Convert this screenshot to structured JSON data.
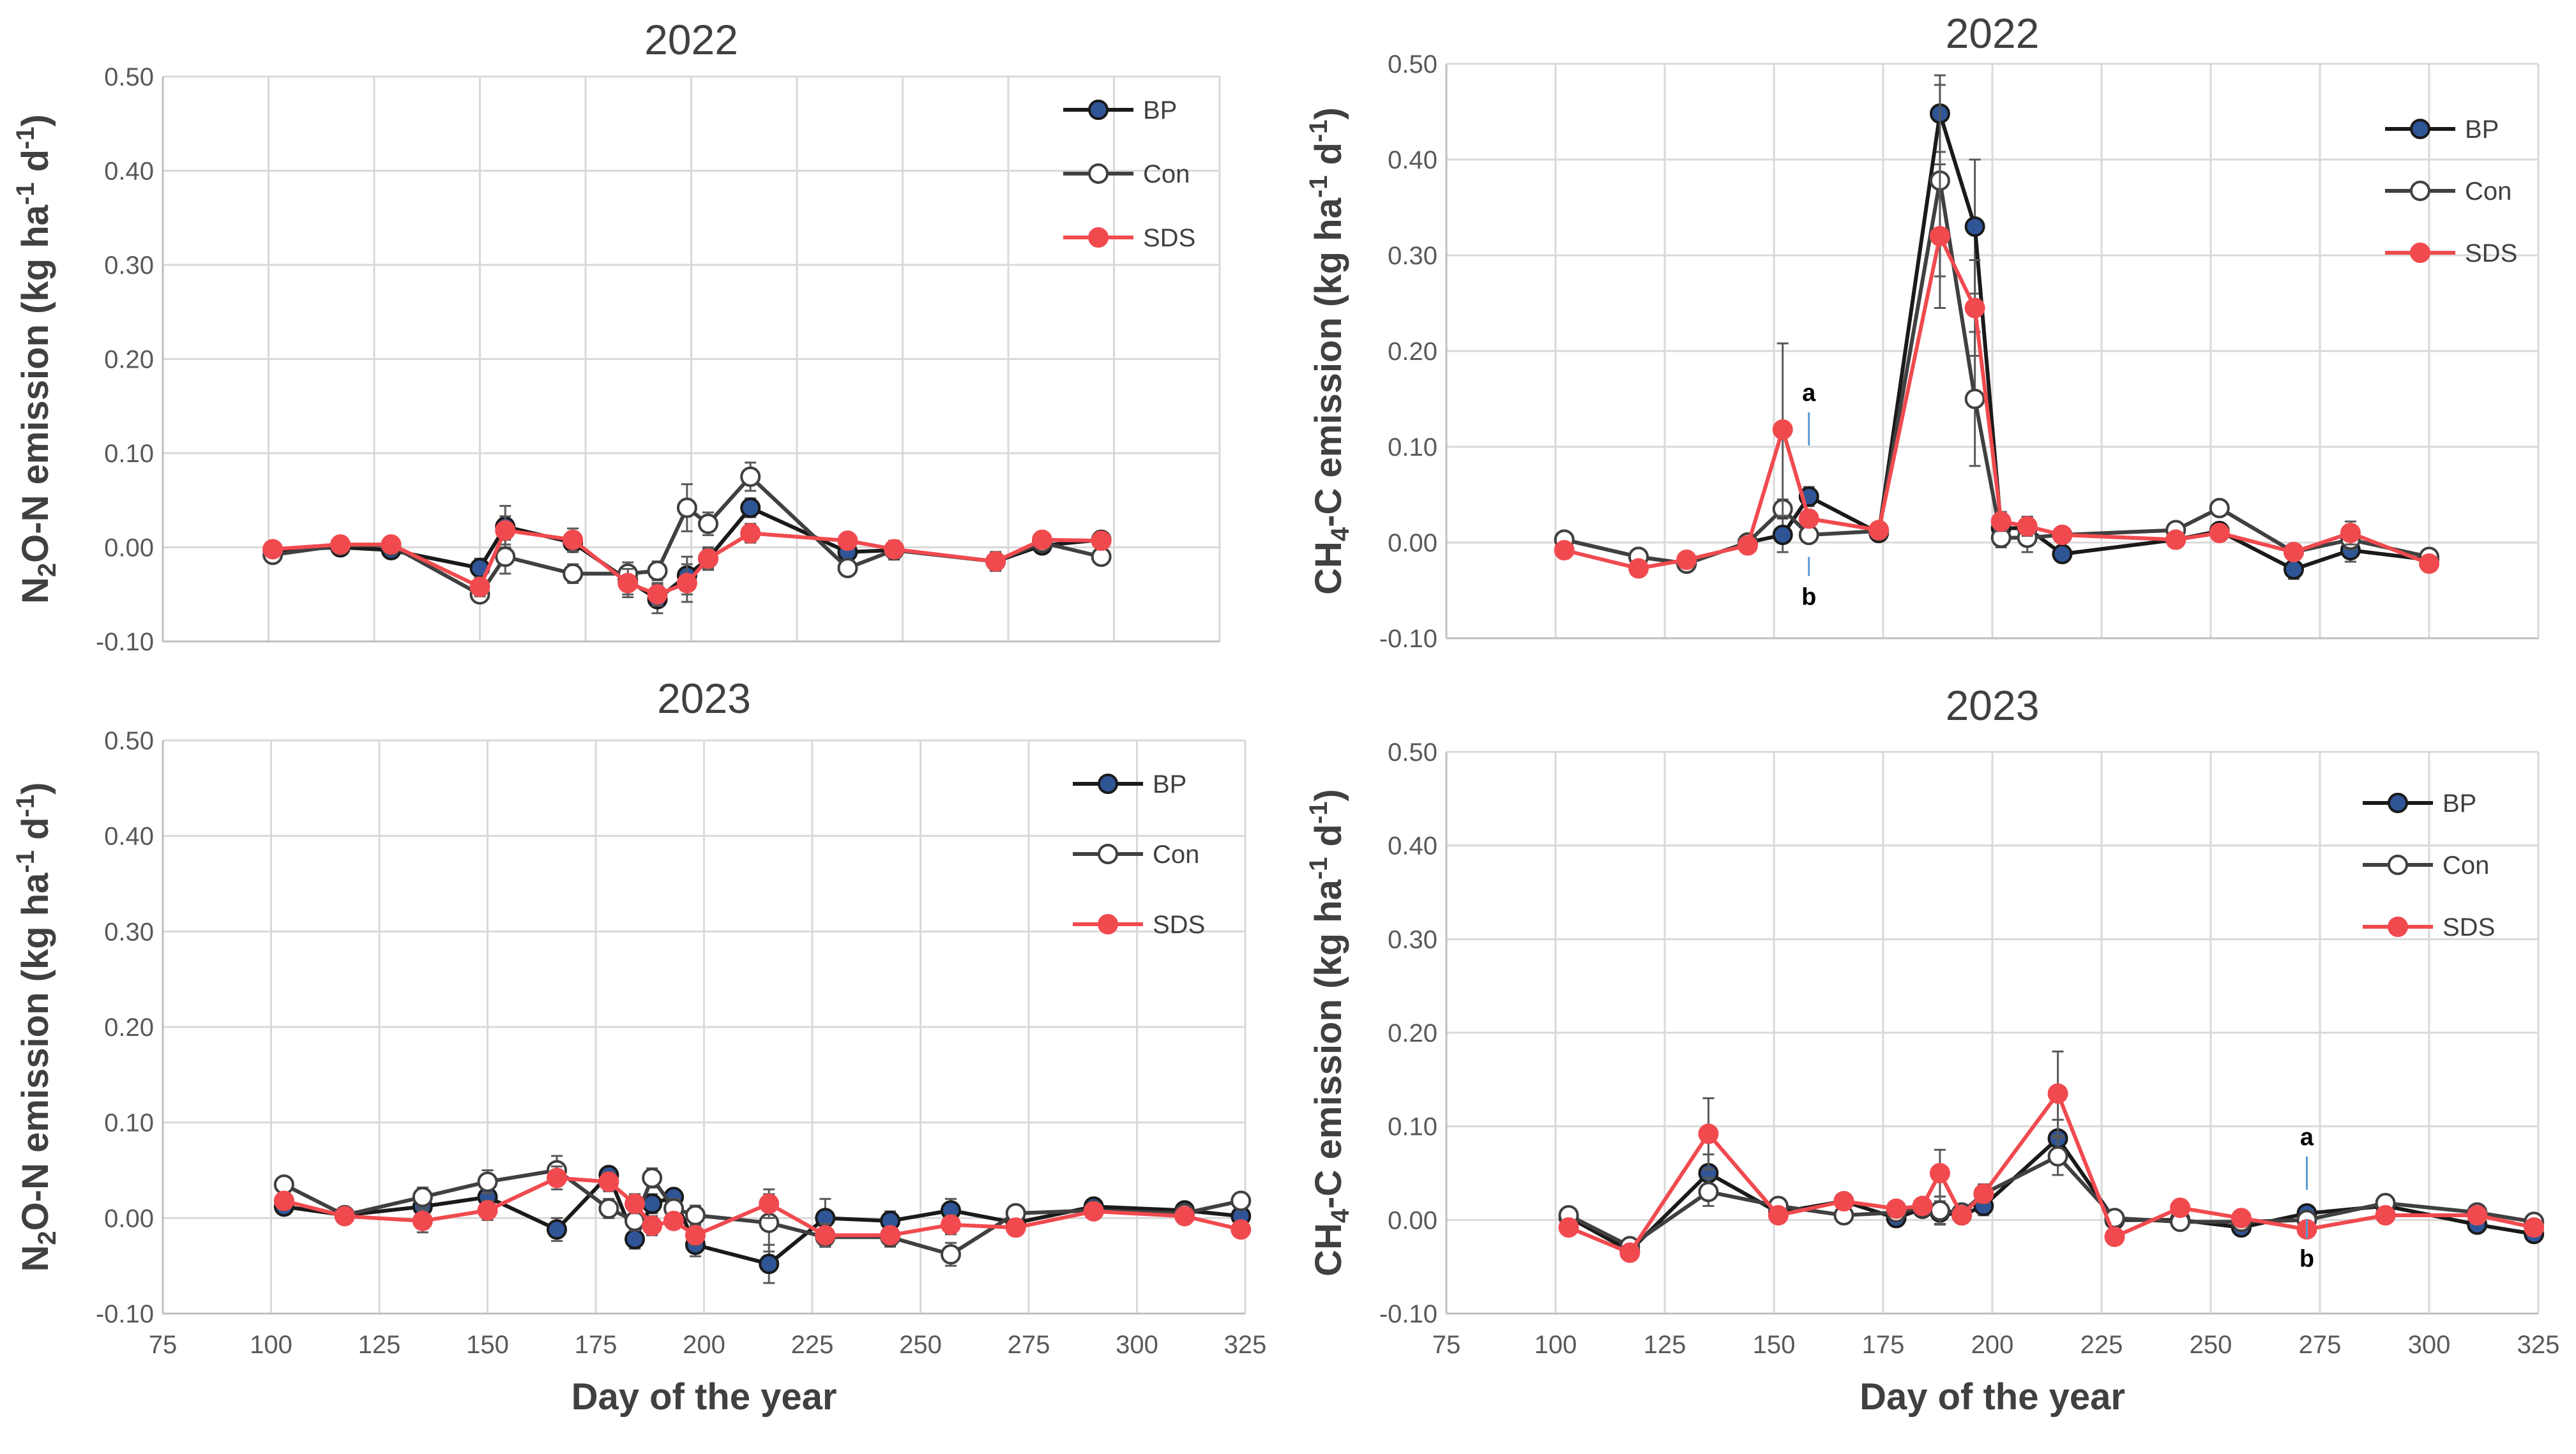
{
  "chart_data": [
    {
      "type": "line",
      "title": "2022",
      "ylabel": {
        "base": "N",
        "sub": "2",
        "rest": "O-N  emission (kg ha",
        "sup1": "-1",
        "mid": " d",
        "sup2": "-1",
        "end": ")"
      },
      "xlabel": "",
      "xlim": [
        75,
        325
      ],
      "ylim": [
        -0.1,
        0.5
      ],
      "yticks": [
        -0.1,
        0,
        0.1,
        0.2,
        0.3,
        0.4,
        0.5
      ],
      "ytick_labels": [
        "-0.10",
        "0.00",
        "0.10",
        "0.20",
        "0.30",
        "0.40",
        "0.50"
      ],
      "xticks": [],
      "legend": [
        "BP",
        "Con",
        "SDS"
      ],
      "legend_position": "top-right",
      "series": [
        {
          "name": "BP",
          "x": [
            101,
            117,
            129,
            150,
            156,
            172,
            185,
            192,
            199,
            204,
            214,
            237,
            248,
            272,
            283,
            297
          ],
          "y": [
            -0.003,
            0.0,
            -0.003,
            -0.022,
            0.022,
            0.005,
            -0.035,
            -0.055,
            -0.03,
            -0.012,
            0.042,
            -0.005,
            -0.003,
            -0.015,
            0.002,
            0.008
          ],
          "err": [
            0.005,
            0.005,
            0.005,
            0.01,
            0.022,
            0.01,
            0.015,
            0.015,
            0.02,
            0.012,
            0.01,
            0.01,
            0.01,
            0.01,
            0.005,
            0.005
          ]
        },
        {
          "name": "Con",
          "x": [
            101,
            117,
            129,
            150,
            156,
            172,
            185,
            192,
            199,
            204,
            214,
            237,
            248,
            272,
            283,
            297
          ],
          "y": [
            -0.008,
            0.002,
            0.002,
            -0.05,
            -0.01,
            -0.028,
            -0.028,
            -0.025,
            0.042,
            0.025,
            0.075,
            -0.022,
            -0.003,
            -0.015,
            0.005,
            -0.01
          ],
          "err": [
            0.005,
            0.005,
            0.005,
            0.008,
            0.018,
            0.01,
            0.012,
            0.01,
            0.025,
            0.012,
            0.015,
            0.008,
            0.01,
            0.01,
            0.005,
            0.005
          ]
        },
        {
          "name": "SDS",
          "x": [
            101,
            117,
            129,
            150,
            156,
            172,
            185,
            192,
            199,
            204,
            214,
            237,
            248,
            272,
            283,
            297
          ],
          "y": [
            -0.002,
            0.003,
            0.003,
            -0.042,
            0.018,
            0.008,
            -0.038,
            -0.05,
            -0.038,
            -0.012,
            0.015,
            0.007,
            -0.002,
            -0.015,
            0.008,
            0.007
          ],
          "err": [
            0.005,
            0.005,
            0.005,
            0.01,
            0.015,
            0.012,
            0.015,
            0.012,
            0.02,
            0.01,
            0.01,
            0.008,
            0.008,
            0.008,
            0.005,
            0.005
          ]
        }
      ]
    },
    {
      "type": "line",
      "title": "2022",
      "ylabel": {
        "base": "CH",
        "sub": "4",
        "rest": "-C  emission (kg ha",
        "sup1": "-1",
        "mid": " d",
        "sup2": "-1",
        "end": ")"
      },
      "xlabel": "",
      "xlim": [
        75,
        325
      ],
      "ylim": [
        -0.1,
        0.5
      ],
      "yticks": [
        -0.1,
        0,
        0.1,
        0.2,
        0.3,
        0.4,
        0.5
      ],
      "ytick_labels": [
        "-0.10",
        "0.00",
        "0.10",
        "0.20",
        "0.30",
        "0.40",
        "0.50"
      ],
      "xticks": [],
      "legend": [
        "BP",
        "Con",
        "SDS"
      ],
      "legend_position": "top-right",
      "annotations": [
        {
          "text": "a",
          "x": 158,
          "y": 0.148
        },
        {
          "text": "b",
          "x": 158,
          "y": -0.065
        }
      ],
      "series": [
        {
          "name": "BP",
          "x": [
            102,
            119,
            130,
            144,
            152,
            158,
            174,
            188,
            196,
            202,
            208,
            216,
            242,
            252,
            269,
            282,
            300
          ],
          "y": [
            0.003,
            -0.015,
            -0.022,
            0.0,
            0.008,
            0.048,
            0.01,
            0.448,
            0.33,
            0.015,
            0.015,
            -0.012,
            0.003,
            0.012,
            -0.028,
            -0.008,
            -0.018
          ],
          "err": [
            0.005,
            0.005,
            0.005,
            0.005,
            0.018,
            0.01,
            0.008,
            0.04,
            0.07,
            0.01,
            0.012,
            0.008,
            0.005,
            0.005,
            0.01,
            0.012,
            0.005
          ]
        },
        {
          "name": "Con",
          "x": [
            102,
            119,
            130,
            144,
            152,
            158,
            174,
            188,
            196,
            202,
            208,
            216,
            242,
            252,
            269,
            282,
            300
          ],
          "y": [
            0.003,
            -0.015,
            -0.022,
            0.0,
            0.035,
            0.008,
            0.012,
            0.378,
            0.15,
            0.005,
            0.005,
            0.008,
            0.013,
            0.036,
            -0.01,
            0.003,
            -0.015
          ],
          "err": [
            0.005,
            0.005,
            0.005,
            0.005,
            0.01,
            0.005,
            0.005,
            0.1,
            0.07,
            0.01,
            0.015,
            0.005,
            0.005,
            0.005,
            0.008,
            0.01,
            0.005
          ]
        },
        {
          "name": "SDS",
          "x": [
            102,
            119,
            130,
            144,
            152,
            158,
            174,
            188,
            196,
            202,
            208,
            216,
            242,
            252,
            269,
            282,
            300
          ],
          "y": [
            -0.008,
            -0.027,
            -0.018,
            -0.003,
            0.118,
            0.025,
            0.013,
            0.32,
            0.245,
            0.022,
            0.017,
            0.008,
            0.003,
            0.01,
            -0.01,
            0.01,
            -0.022
          ],
          "err": [
            0.005,
            0.005,
            0.005,
            0.005,
            0.09,
            0.008,
            0.008,
            0.075,
            0.05,
            0.01,
            0.01,
            0.005,
            0.005,
            0.005,
            0.008,
            0.012,
            0.005
          ]
        }
      ]
    },
    {
      "type": "line",
      "title": "2023",
      "ylabel": {
        "base": "N",
        "sub": "2",
        "rest": "O-N  emission (kg ha",
        "sup1": "-1",
        "mid": " d",
        "sup2": "-1",
        "end": ")"
      },
      "xlabel": "Day of the year",
      "xlim": [
        75,
        325
      ],
      "ylim": [
        -0.1,
        0.5
      ],
      "yticks": [
        -0.1,
        0,
        0.1,
        0.2,
        0.3,
        0.4,
        0.5
      ],
      "ytick_labels": [
        "-0.10",
        "0.00",
        "0.10",
        "0.20",
        "0.30",
        "0.40",
        "0.50"
      ],
      "xticks": [
        75,
        100,
        125,
        150,
        175,
        200,
        225,
        250,
        275,
        300,
        325
      ],
      "legend": [
        "BP",
        "Con",
        "SDS"
      ],
      "legend_position": "top-right",
      "series": [
        {
          "name": "BP",
          "x": [
            103,
            117,
            135,
            150,
            166,
            178,
            184,
            188,
            193,
            198,
            215,
            228,
            243,
            257,
            272,
            290,
            311,
            324
          ],
          "y": [
            0.012,
            0.003,
            0.012,
            0.022,
            -0.012,
            0.045,
            -0.022,
            0.015,
            0.022,
            -0.028,
            -0.048,
            0.0,
            -0.003,
            0.008,
            -0.005,
            0.012,
            0.008,
            0.002
          ],
          "err": [
            0.005,
            0.005,
            0.008,
            0.01,
            0.012,
            0.008,
            0.01,
            0.01,
            0.008,
            0.012,
            0.02,
            0.02,
            0.01,
            0.012,
            0.008,
            0.005,
            0.008,
            0.005
          ]
        },
        {
          "name": "Con",
          "x": [
            103,
            117,
            135,
            150,
            166,
            178,
            184,
            188,
            193,
            198,
            215,
            228,
            243,
            257,
            272,
            290,
            311,
            324
          ],
          "y": [
            0.035,
            0.003,
            0.022,
            0.038,
            0.05,
            0.01,
            -0.003,
            0.042,
            0.01,
            0.003,
            -0.005,
            -0.02,
            -0.02,
            -0.038,
            0.005,
            0.008,
            0.005,
            0.018
          ],
          "err": [
            0.008,
            0.005,
            0.01,
            0.012,
            0.015,
            0.01,
            0.01,
            0.01,
            0.01,
            0.01,
            0.03,
            0.01,
            0.01,
            0.012,
            0.008,
            0.005,
            0.008,
            0.005
          ]
        },
        {
          "name": "SDS",
          "x": [
            103,
            117,
            135,
            150,
            166,
            178,
            184,
            188,
            193,
            198,
            215,
            228,
            243,
            257,
            272,
            290,
            311,
            324
          ],
          "y": [
            0.018,
            0.002,
            -0.003,
            0.008,
            0.042,
            0.038,
            0.015,
            -0.008,
            -0.003,
            -0.018,
            0.015,
            -0.018,
            -0.018,
            -0.007,
            -0.01,
            0.007,
            0.002,
            -0.012
          ],
          "err": [
            0.005,
            0.005,
            0.012,
            0.01,
            0.012,
            0.01,
            0.01,
            0.01,
            0.008,
            0.01,
            0.015,
            0.012,
            0.008,
            0.01,
            0.008,
            0.005,
            0.008,
            0.005
          ]
        }
      ]
    },
    {
      "type": "line",
      "title": "2023",
      "ylabel": {
        "base": "CH",
        "sub": "4",
        "rest": "-C  emission (kg ha",
        "sup1": "-1",
        "mid": " d",
        "sup2": "-1",
        "end": ")"
      },
      "xlabel": "Day of the year",
      "xlim": [
        75,
        325
      ],
      "ylim": [
        -0.1,
        0.5
      ],
      "yticks": [
        -0.1,
        0,
        0.1,
        0.2,
        0.3,
        0.4,
        0.5
      ],
      "ytick_labels": [
        "-0.10",
        "0.00",
        "0.10",
        "0.20",
        "0.30",
        "0.40",
        "0.50"
      ],
      "xticks": [
        75,
        100,
        125,
        150,
        175,
        200,
        225,
        250,
        275,
        300,
        325
      ],
      "legend": [
        "BP",
        "Con",
        "SDS"
      ],
      "legend_position": "top-right",
      "annotations": [
        {
          "text": "a",
          "x": 272,
          "y": 0.08
        },
        {
          "text": "b",
          "x": 272,
          "y": -0.05
        }
      ],
      "series": [
        {
          "name": "BP",
          "x": [
            103,
            117,
            135,
            151,
            166,
            178,
            184,
            188,
            193,
            198,
            215,
            228,
            243,
            257,
            272,
            290,
            311,
            324
          ],
          "y": [
            0.003,
            -0.033,
            0.05,
            0.008,
            0.02,
            0.002,
            0.012,
            0.008,
            0.005,
            0.015,
            0.087,
            0.0,
            0.0,
            -0.008,
            0.007,
            0.015,
            -0.005,
            -0.015
          ],
          "err": [
            0.01,
            0.008,
            0.02,
            0.005,
            0.005,
            0.008,
            0.008,
            0.012,
            0.008,
            0.01,
            0.02,
            0.005,
            0.005,
            0.008,
            0.005,
            0.005,
            0.005,
            0.005
          ]
        },
        {
          "name": "Con",
          "x": [
            103,
            117,
            135,
            151,
            166,
            178,
            184,
            188,
            193,
            198,
            215,
            228,
            243,
            257,
            272,
            290,
            311,
            324
          ],
          "y": [
            0.005,
            -0.028,
            0.03,
            0.015,
            0.005,
            0.008,
            0.013,
            0.01,
            0.008,
            0.028,
            0.068,
            0.002,
            -0.002,
            -0.002,
            0.0,
            0.018,
            0.008,
            -0.002
          ],
          "err": [
            0.008,
            0.008,
            0.015,
            0.005,
            0.005,
            0.008,
            0.008,
            0.015,
            0.008,
            0.01,
            0.02,
            0.005,
            0.005,
            0.008,
            0.005,
            0.005,
            0.005,
            0.005
          ]
        },
        {
          "name": "SDS",
          "x": [
            103,
            117,
            135,
            151,
            166,
            178,
            184,
            188,
            193,
            198,
            215,
            228,
            243,
            257,
            272,
            290,
            311,
            324
          ],
          "y": [
            -0.008,
            -0.035,
            0.092,
            0.005,
            0.02,
            0.012,
            0.015,
            0.05,
            0.005,
            0.028,
            0.135,
            -0.018,
            0.013,
            0.002,
            -0.01,
            0.005,
            0.005,
            -0.008
          ],
          "err": [
            0.008,
            0.008,
            0.038,
            0.005,
            0.005,
            0.008,
            0.008,
            0.025,
            0.008,
            0.01,
            0.045,
            0.008,
            0.005,
            0.008,
            0.005,
            0.005,
            0.005,
            0.005
          ]
        }
      ]
    }
  ],
  "colors": {
    "BP_line": "#1a1a1a",
    "BP_marker": "#2f5597",
    "Con_line": "#404040",
    "Con_marker": "#ffffff",
    "SDS_line": "#f04a4f",
    "SDS_marker": "#f04a4f",
    "grid": "#d9d9d9",
    "axis": "#bfbfbf",
    "errorbar": "#595959"
  }
}
